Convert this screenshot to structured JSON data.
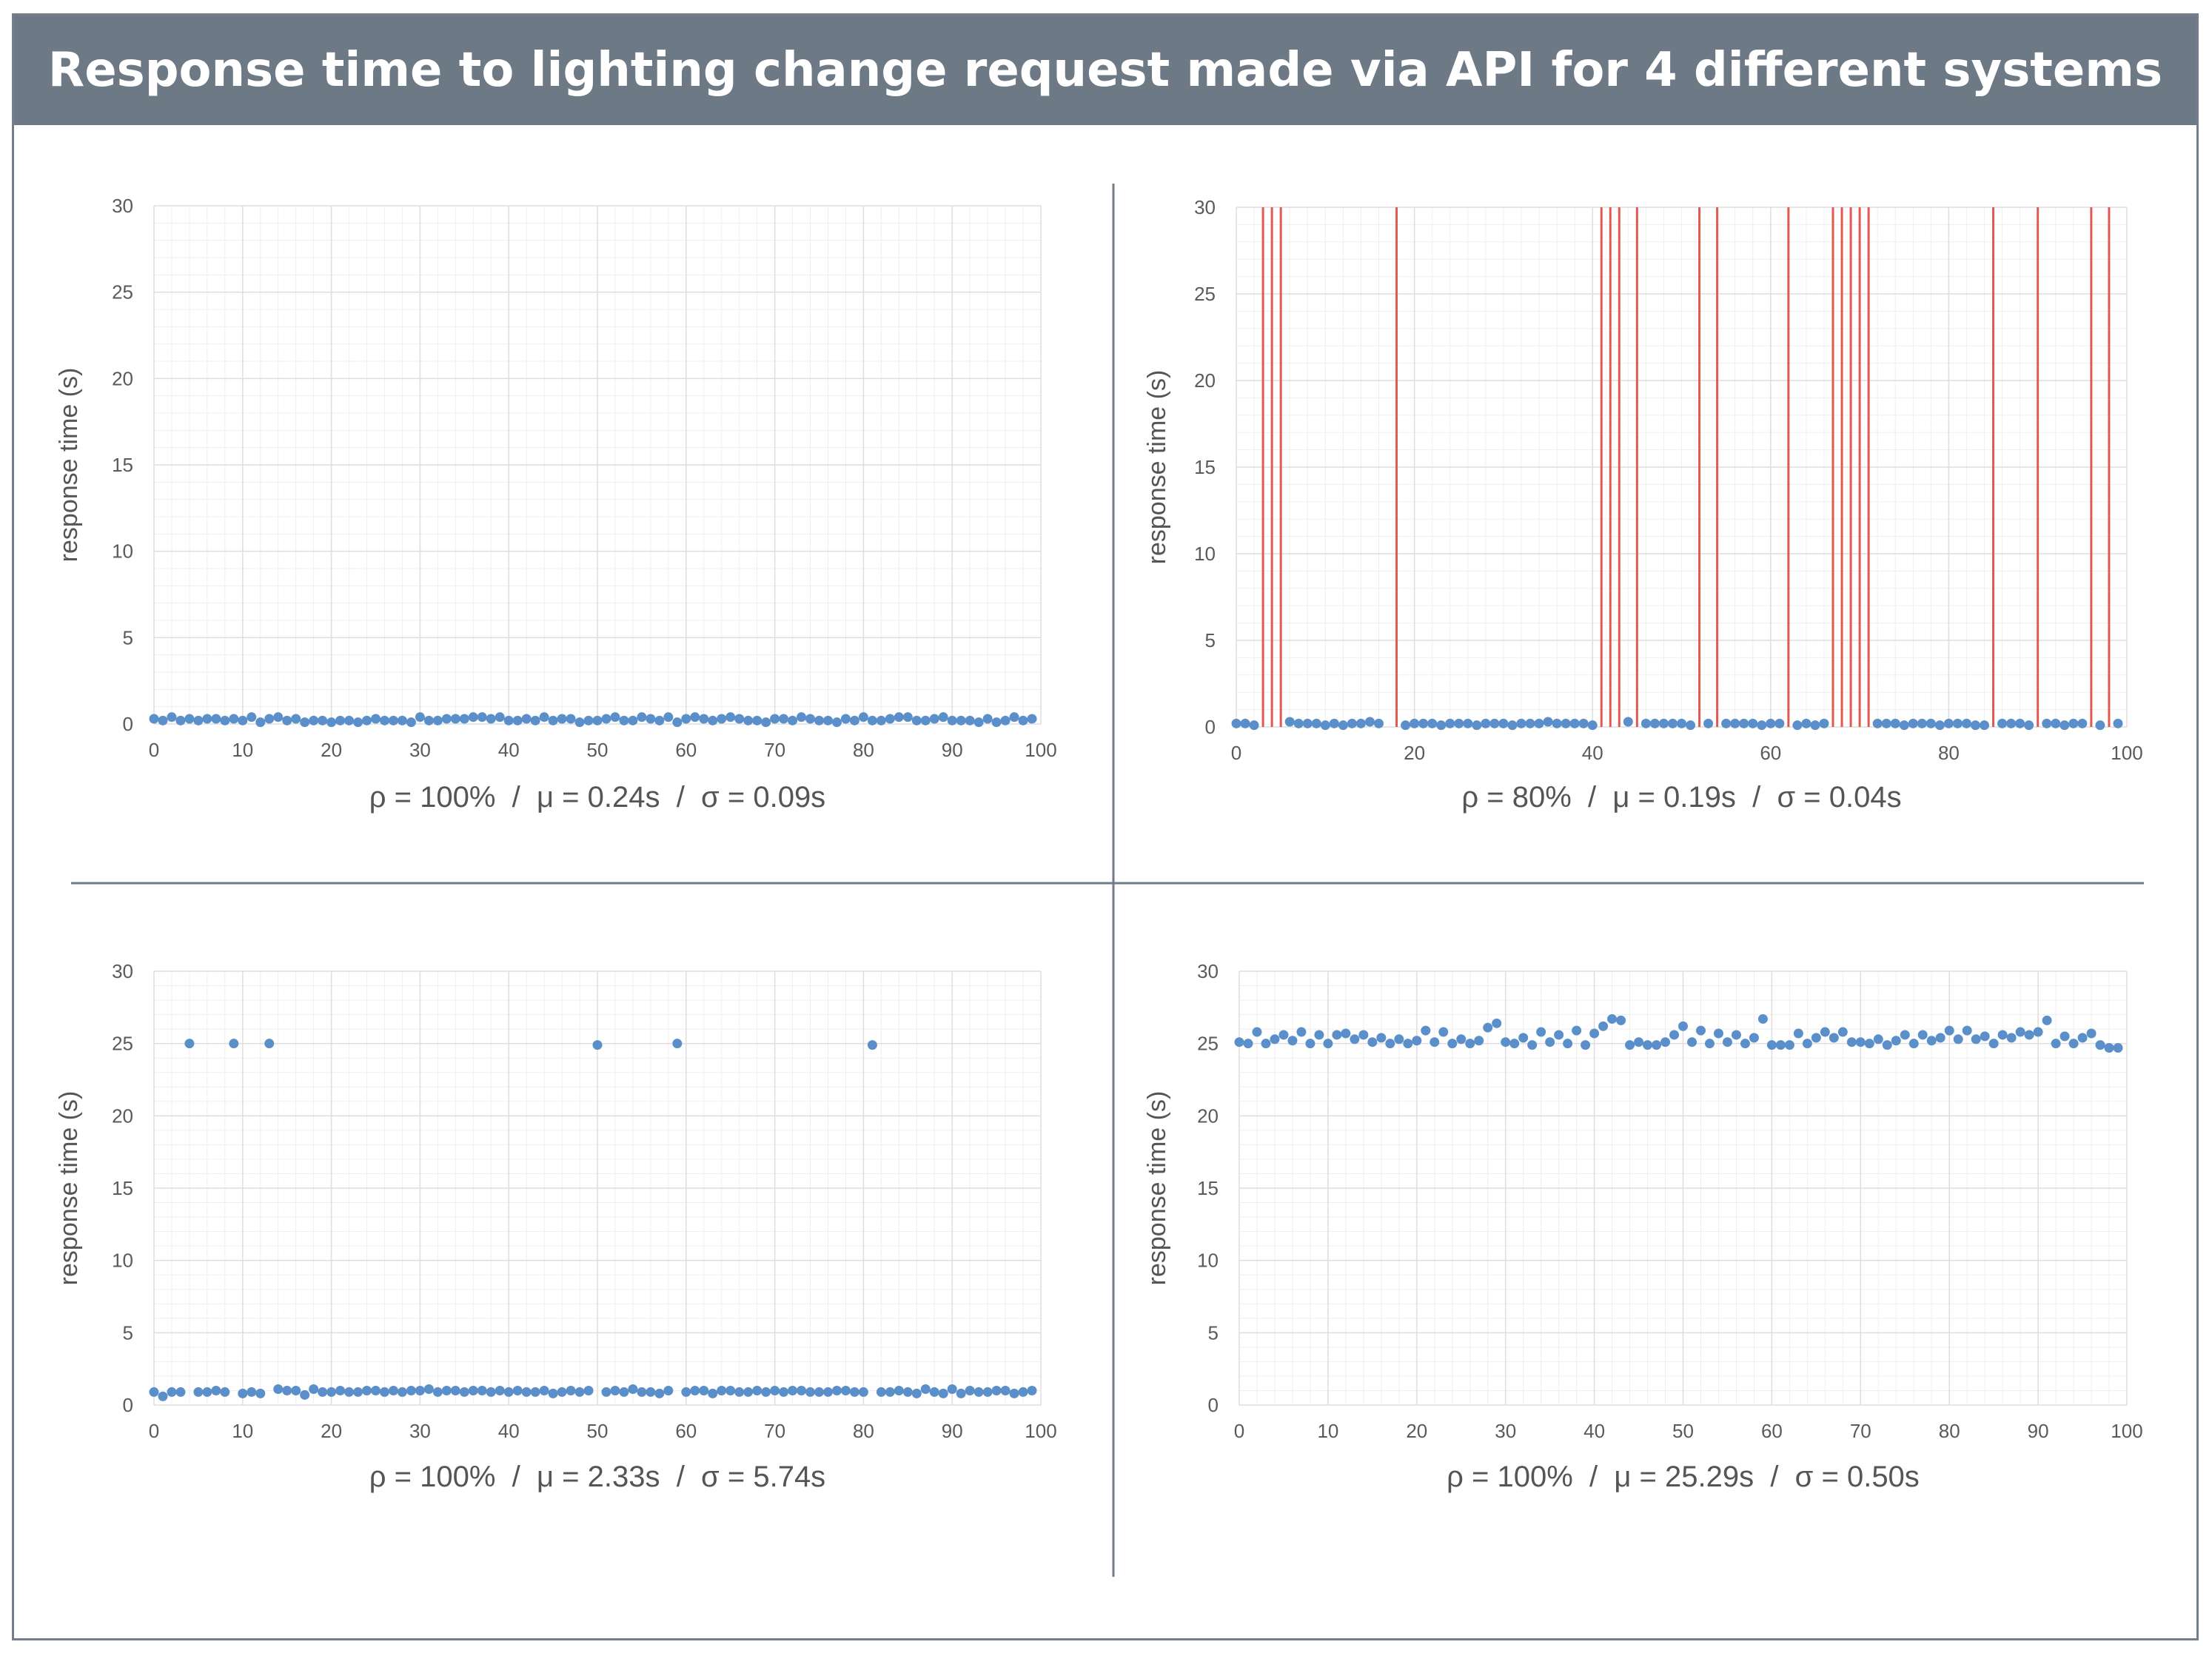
{
  "title": "Response time to lighting change request made via API for 4 different systems",
  "colors": {
    "title_bg": "#6e7986",
    "frame": "#747e8a",
    "divider": "#6f7b88",
    "points": "#5b8fc9",
    "failure_lines": "#e05a52",
    "grid_major": "#dedede",
    "grid_minor": "#efefef"
  },
  "chart_data": [
    {
      "type": "scatter",
      "title": "",
      "ylabel": "response time (s)",
      "xlabel": "",
      "xlim": [
        0,
        100
      ],
      "ylim": [
        0,
        30
      ],
      "x_ticks": [
        "0",
        "10",
        "20",
        "30",
        "40",
        "50",
        "60",
        "70",
        "80",
        "90",
        "100"
      ],
      "y_ticks": [
        "0",
        "5",
        "10",
        "15",
        "20",
        "25",
        "30"
      ],
      "stats": "ρ = 100%  /  μ = 0.24s  /  σ = 0.09s",
      "x": [
        0,
        1,
        2,
        3,
        4,
        5,
        6,
        7,
        8,
        9,
        10,
        11,
        12,
        13,
        14,
        15,
        16,
        17,
        18,
        19,
        20,
        21,
        22,
        23,
        24,
        25,
        26,
        27,
        28,
        29,
        30,
        31,
        32,
        33,
        34,
        35,
        36,
        37,
        38,
        39,
        40,
        41,
        42,
        43,
        44,
        45,
        46,
        47,
        48,
        49,
        50,
        51,
        52,
        53,
        54,
        55,
        56,
        57,
        58,
        59,
        60,
        61,
        62,
        63,
        64,
        65,
        66,
        67,
        68,
        69,
        70,
        71,
        72,
        73,
        74,
        75,
        76,
        77,
        78,
        79,
        80,
        81,
        82,
        83,
        84,
        85,
        86,
        87,
        88,
        89,
        90,
        91,
        92,
        93,
        94,
        95,
        96,
        97,
        98,
        99
      ],
      "y": [
        0.3,
        0.2,
        0.4,
        0.2,
        0.3,
        0.2,
        0.3,
        0.3,
        0.2,
        0.3,
        0.2,
        0.4,
        0.1,
        0.3,
        0.4,
        0.2,
        0.3,
        0.1,
        0.2,
        0.2,
        0.1,
        0.2,
        0.2,
        0.1,
        0.2,
        0.3,
        0.2,
        0.2,
        0.2,
        0.1,
        0.4,
        0.2,
        0.2,
        0.3,
        0.3,
        0.3,
        0.4,
        0.4,
        0.3,
        0.4,
        0.2,
        0.2,
        0.3,
        0.2,
        0.4,
        0.2,
        0.3,
        0.3,
        0.1,
        0.2,
        0.2,
        0.3,
        0.4,
        0.2,
        0.2,
        0.4,
        0.3,
        0.2,
        0.4,
        0.1,
        0.3,
        0.4,
        0.3,
        0.2,
        0.3,
        0.4,
        0.3,
        0.2,
        0.2,
        0.1,
        0.3,
        0.3,
        0.2,
        0.4,
        0.3,
        0.2,
        0.2,
        0.1,
        0.3,
        0.2,
        0.4,
        0.2,
        0.2,
        0.3,
        0.4,
        0.4,
        0.2,
        0.2,
        0.3,
        0.4,
        0.2,
        0.2,
        0.2,
        0.1,
        0.3,
        0.1,
        0.2,
        0.4,
        0.2,
        0.3
      ],
      "failures": []
    },
    {
      "type": "scatter",
      "title": "",
      "ylabel": "response time (s)",
      "xlabel": "",
      "xlim": [
        0,
        100
      ],
      "ylim": [
        0,
        30
      ],
      "x_ticks": [
        "0",
        "20",
        "40",
        "60",
        "80",
        "100"
      ],
      "y_ticks": [
        "0",
        "5",
        "10",
        "15",
        "20",
        "25",
        "30"
      ],
      "stats": "ρ = 80%  /  μ = 0.19s  /  σ = 0.04s",
      "x": [
        0,
        1,
        2,
        6,
        7,
        8,
        9,
        10,
        11,
        12,
        13,
        14,
        15,
        16,
        19,
        20,
        21,
        22,
        23,
        24,
        25,
        26,
        27,
        28,
        29,
        30,
        31,
        32,
        33,
        34,
        35,
        36,
        37,
        38,
        39,
        40,
        44,
        46,
        47,
        48,
        49,
        50,
        51,
        53,
        55,
        56,
        57,
        58,
        59,
        60,
        61,
        63,
        64,
        65,
        66,
        72,
        73,
        74,
        75,
        76,
        77,
        78,
        79,
        80,
        81,
        82,
        83,
        84,
        86,
        87,
        88,
        89,
        91,
        92,
        93,
        94,
        95,
        97,
        99
      ],
      "y": [
        0.2,
        0.2,
        0.1,
        0.3,
        0.2,
        0.2,
        0.2,
        0.1,
        0.2,
        0.1,
        0.2,
        0.2,
        0.3,
        0.2,
        0.1,
        0.2,
        0.2,
        0.2,
        0.1,
        0.2,
        0.2,
        0.2,
        0.1,
        0.2,
        0.2,
        0.2,
        0.1,
        0.2,
        0.2,
        0.2,
        0.3,
        0.2,
        0.2,
        0.2,
        0.2,
        0.1,
        0.3,
        0.2,
        0.2,
        0.2,
        0.2,
        0.2,
        0.1,
        0.2,
        0.2,
        0.2,
        0.2,
        0.2,
        0.1,
        0.2,
        0.2,
        0.1,
        0.2,
        0.1,
        0.2,
        0.2,
        0.2,
        0.2,
        0.1,
        0.2,
        0.2,
        0.2,
        0.1,
        0.2,
        0.2,
        0.2,
        0.1,
        0.1,
        0.2,
        0.2,
        0.2,
        0.1,
        0.2,
        0.2,
        0.1,
        0.2,
        0.2,
        0.1,
        0.2
      ],
      "failures": [
        3,
        4,
        5,
        18,
        41,
        42,
        43,
        45,
        52,
        54,
        62,
        67,
        68,
        69,
        70,
        71,
        85,
        90,
        96,
        98
      ]
    },
    {
      "type": "scatter",
      "title": "",
      "ylabel": "response time (s)",
      "xlabel": "",
      "xlim": [
        0,
        100
      ],
      "ylim": [
        0,
        30
      ],
      "x_ticks": [
        "0",
        "10",
        "20",
        "30",
        "40",
        "50",
        "60",
        "70",
        "80",
        "90",
        "100"
      ],
      "y_ticks": [
        "0",
        "5",
        "10",
        "15",
        "20",
        "25",
        "30"
      ],
      "stats": "ρ = 100%  /  μ = 2.33s  /  σ = 5.74s",
      "x": [
        0,
        1,
        2,
        3,
        4,
        5,
        6,
        7,
        8,
        9,
        10,
        11,
        12,
        13,
        14,
        15,
        16,
        17,
        18,
        19,
        20,
        21,
        22,
        23,
        24,
        25,
        26,
        27,
        28,
        29,
        30,
        31,
        32,
        33,
        34,
        35,
        36,
        37,
        38,
        39,
        40,
        41,
        42,
        43,
        44,
        45,
        46,
        47,
        48,
        49,
        50,
        51,
        52,
        53,
        54,
        55,
        56,
        57,
        58,
        59,
        60,
        61,
        62,
        63,
        64,
        65,
        66,
        67,
        68,
        69,
        70,
        71,
        72,
        73,
        74,
        75,
        76,
        77,
        78,
        79,
        80,
        81,
        82,
        83,
        84,
        85,
        86,
        87,
        88,
        89,
        90,
        91,
        92,
        93,
        94,
        95,
        96,
        97,
        98,
        99
      ],
      "y": [
        0.9,
        0.6,
        0.9,
        0.9,
        25.0,
        0.9,
        0.9,
        1.0,
        0.9,
        25.0,
        0.8,
        0.9,
        0.8,
        25.0,
        1.1,
        1.0,
        1.0,
        0.7,
        1.1,
        0.9,
        0.9,
        1.0,
        0.9,
        0.9,
        1.0,
        1.0,
        0.9,
        1.0,
        0.9,
        1.0,
        1.0,
        1.1,
        0.9,
        1.0,
        1.0,
        0.9,
        1.0,
        1.0,
        0.9,
        1.0,
        0.9,
        1.0,
        0.9,
        0.9,
        1.0,
        0.8,
        0.9,
        1.0,
        0.9,
        1.0,
        24.9,
        0.9,
        1.0,
        0.9,
        1.1,
        0.9,
        0.9,
        0.8,
        1.0,
        25.0,
        0.9,
        1.0,
        1.0,
        0.8,
        1.0,
        1.0,
        0.9,
        0.9,
        1.0,
        0.9,
        1.0,
        0.9,
        1.0,
        1.0,
        0.9,
        0.9,
        0.9,
        1.0,
        1.0,
        0.9,
        0.9,
        24.9,
        0.9,
        0.9,
        1.0,
        0.9,
        0.8,
        1.1,
        0.9,
        0.8,
        1.1,
        0.8,
        1.0,
        0.9,
        0.9,
        1.0,
        1.0,
        0.8,
        0.9,
        1.0
      ],
      "failures": []
    },
    {
      "type": "scatter",
      "title": "",
      "ylabel": "response time (s)",
      "xlabel": "",
      "xlim": [
        0,
        100
      ],
      "ylim": [
        0,
        30
      ],
      "x_ticks": [
        "0",
        "10",
        "20",
        "30",
        "40",
        "50",
        "60",
        "70",
        "80",
        "90",
        "100"
      ],
      "y_ticks": [
        "0",
        "5",
        "10",
        "15",
        "20",
        "25",
        "30"
      ],
      "stats": "ρ = 100%  /  μ = 25.29s  /  σ = 0.50s",
      "x": [
        0,
        1,
        2,
        3,
        4,
        5,
        6,
        7,
        8,
        9,
        10,
        11,
        12,
        13,
        14,
        15,
        16,
        17,
        18,
        19,
        20,
        21,
        22,
        23,
        24,
        25,
        26,
        27,
        28,
        29,
        30,
        31,
        32,
        33,
        34,
        35,
        36,
        37,
        38,
        39,
        40,
        41,
        42,
        43,
        44,
        45,
        46,
        47,
        48,
        49,
        50,
        51,
        52,
        53,
        54,
        55,
        56,
        57,
        58,
        59,
        60,
        61,
        62,
        63,
        64,
        65,
        66,
        67,
        68,
        69,
        70,
        71,
        72,
        73,
        74,
        75,
        76,
        77,
        78,
        79,
        80,
        81,
        82,
        83,
        84,
        85,
        86,
        87,
        88,
        89,
        90,
        91,
        92,
        93,
        94,
        95,
        96,
        97,
        98,
        99
      ],
      "y": [
        25.1,
        25.0,
        25.8,
        25.0,
        25.3,
        25.6,
        25.2,
        25.8,
        25.0,
        25.6,
        25.0,
        25.6,
        25.7,
        25.3,
        25.6,
        25.1,
        25.4,
        25.0,
        25.3,
        25.0,
        25.2,
        25.9,
        25.1,
        25.8,
        25.0,
        25.3,
        25.0,
        25.2,
        26.1,
        26.4,
        25.1,
        25.0,
        25.4,
        24.9,
        25.8,
        25.1,
        25.6,
        25.0,
        25.9,
        24.9,
        25.7,
        26.2,
        26.7,
        26.6,
        24.9,
        25.1,
        24.9,
        24.9,
        25.1,
        25.6,
        26.2,
        25.1,
        25.9,
        25.0,
        25.7,
        25.1,
        25.6,
        25.0,
        25.4,
        26.7,
        24.9,
        24.9,
        24.9,
        25.7,
        25.0,
        25.4,
        25.8,
        25.4,
        25.8,
        25.1,
        25.1,
        25.0,
        25.3,
        24.9,
        25.2,
        25.6,
        25.0,
        25.6,
        25.2,
        25.4,
        25.9,
        25.3,
        25.9,
        25.3,
        25.5,
        25.0,
        25.6,
        25.4,
        25.8,
        25.6,
        25.8,
        26.6,
        25.0,
        25.5,
        25.0,
        25.4,
        25.7,
        24.9,
        24.7,
        24.7
      ],
      "failures": []
    }
  ]
}
